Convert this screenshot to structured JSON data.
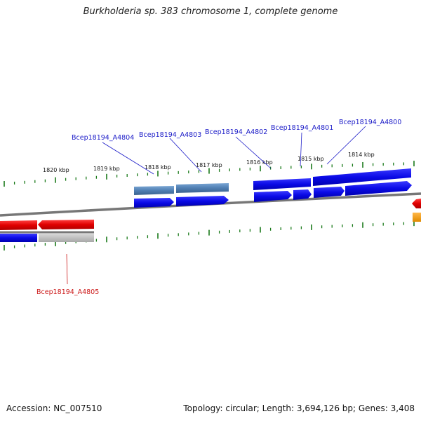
{
  "title": "Burkholderia sp. 383 chromosome 1, complete genome",
  "footer": {
    "accession": "Accession: NC_007510",
    "summary": "Topology: circular; Length: 3,694,126 bp; Genes: 3,408"
  },
  "colors": {
    "backbone": "#777777",
    "tick": "#1a7a1a",
    "cds_forward": "#0a0ae6",
    "cds_reverse": "#e00000",
    "cds_highlight": "#4f7fb3",
    "pseudogene": "#c0c0c0",
    "orange_feature": "#f39a1a",
    "label_forward": "#1c1cc8",
    "label_reverse": "#cc1818"
  },
  "scale_labels": [
    "1820 kbp",
    "1819 kbp",
    "1818 kbp",
    "1817 kbp",
    "1816 kbp",
    "1815 kbp",
    "1814 kbp"
  ],
  "gene_labels": [
    {
      "text": "Bcep18194_A4804",
      "strand": "forward"
    },
    {
      "text": "Bcep18194_A4803",
      "strand": "forward"
    },
    {
      "text": "Bcep18194_A4802",
      "strand": "forward"
    },
    {
      "text": "Bcep18194_A4801",
      "strand": "forward"
    },
    {
      "text": "Bcep18194_A4800",
      "strand": "forward"
    },
    {
      "text": "Bcep18194_A4805",
      "strand": "reverse"
    }
  ]
}
